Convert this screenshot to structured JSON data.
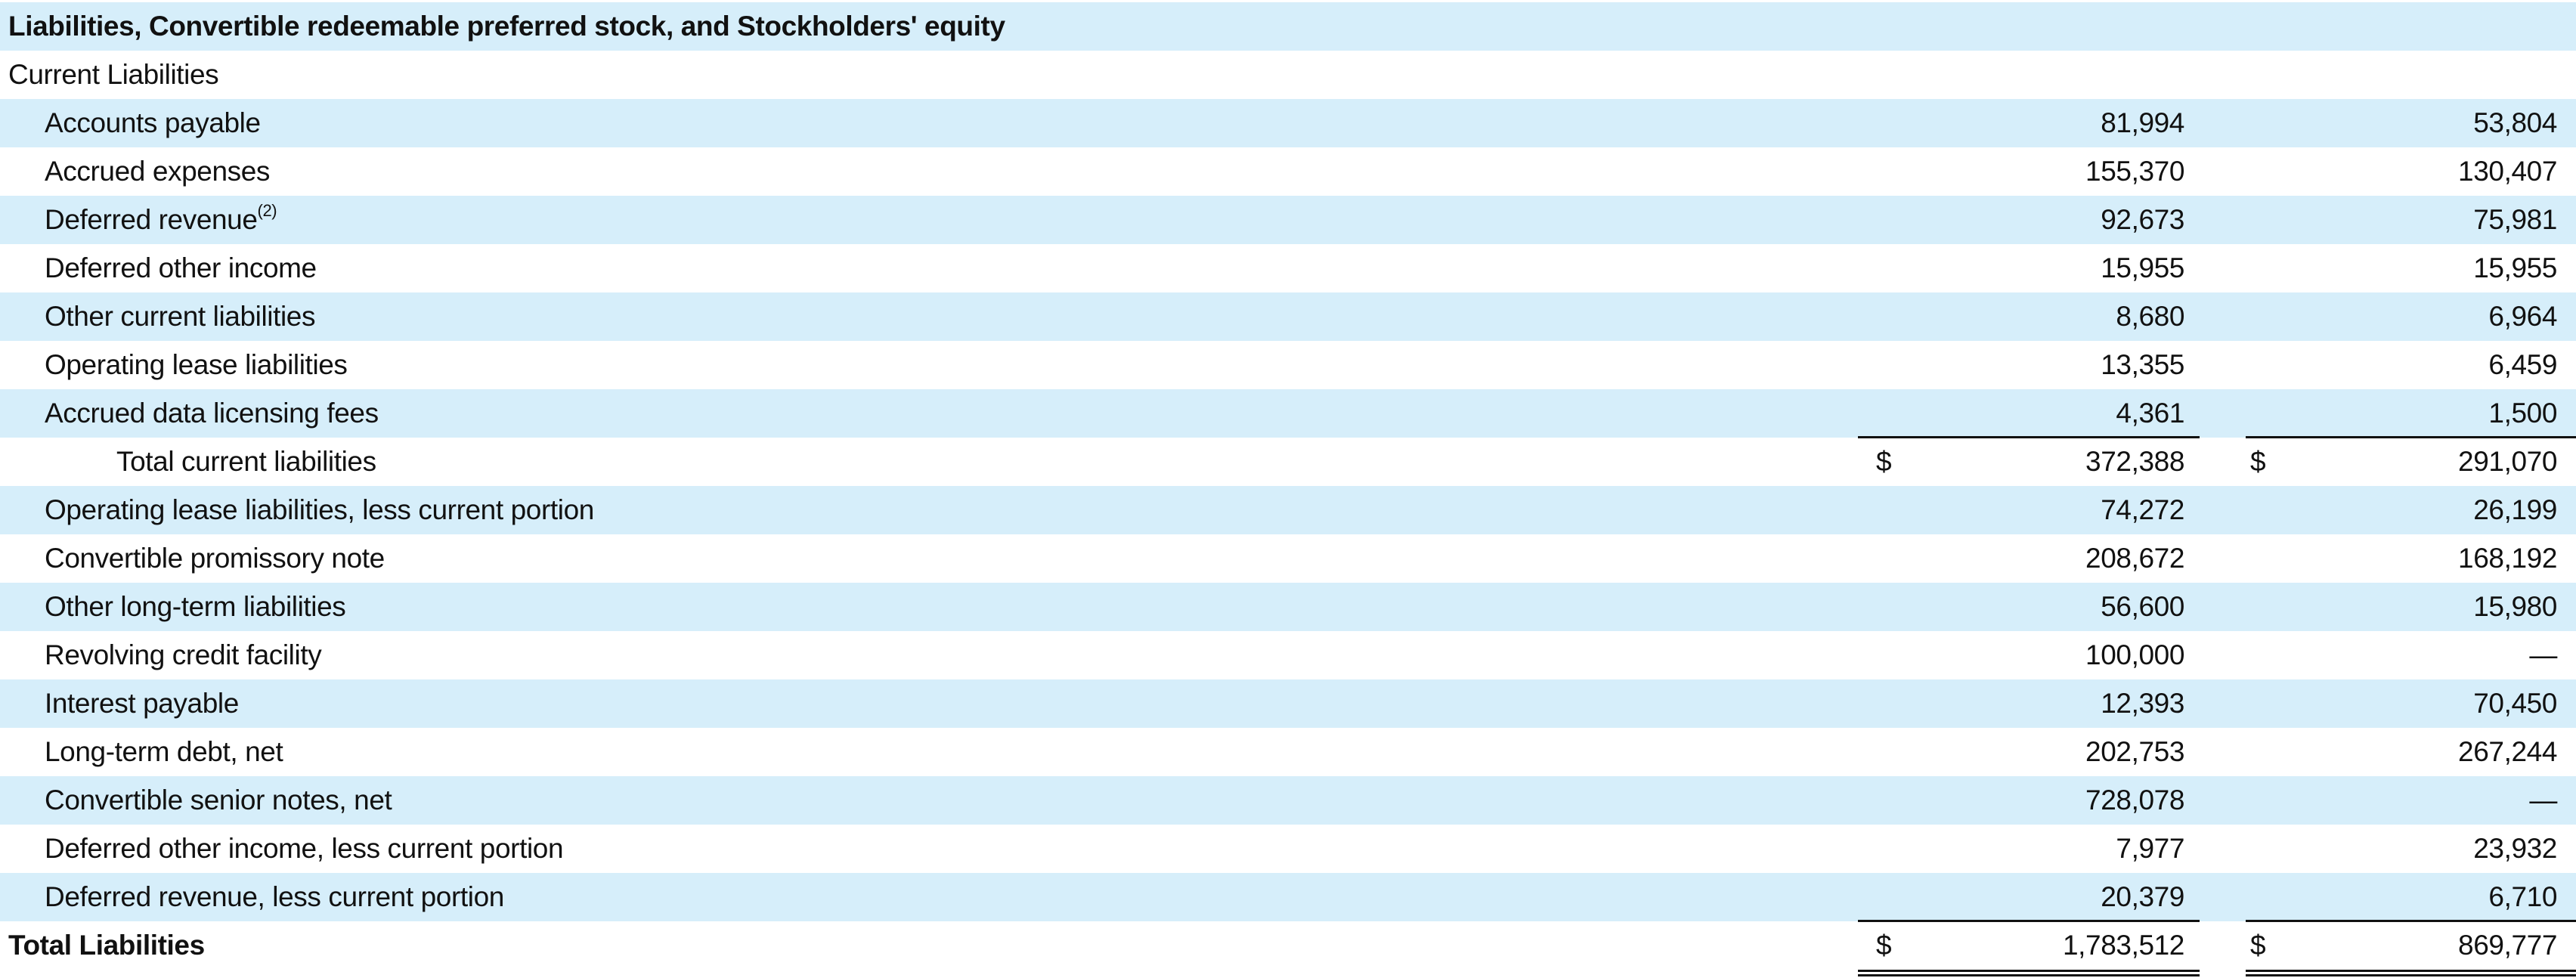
{
  "header": "Liabilities, Convertible redeemable preferred stock, and Stockholders' equity",
  "section": "Current Liabilities",
  "currency_symbol": "$",
  "rows": [
    {
      "label": "Accounts payable",
      "v1": "81,994",
      "v2": "53,804"
    },
    {
      "label": "Accrued expenses",
      "v1": "155,370",
      "v2": "130,407"
    },
    {
      "label": "Deferred revenue",
      "note": "(2)",
      "v1": "92,673",
      "v2": "75,981"
    },
    {
      "label": "Deferred other income",
      "v1": "15,955",
      "v2": "15,955"
    },
    {
      "label": "Other current liabilities",
      "v1": "8,680",
      "v2": "6,964"
    },
    {
      "label": "Operating lease liabilities",
      "v1": "13,355",
      "v2": "6,459"
    },
    {
      "label": "Accrued data licensing fees",
      "v1": "4,361",
      "v2": "1,500"
    },
    {
      "label": "Total current liabilities",
      "v1": "372,388",
      "v2": "291,070",
      "subtotal": true
    },
    {
      "label": "Operating lease liabilities, less current portion",
      "v1": "74,272",
      "v2": "26,199"
    },
    {
      "label": "Convertible promissory note",
      "v1": "208,672",
      "v2": "168,192"
    },
    {
      "label": "Other long-term liabilities",
      "v1": "56,600",
      "v2": "15,980"
    },
    {
      "label": "Revolving credit facility",
      "v1": "100,000",
      "v2": "—"
    },
    {
      "label": "Interest payable",
      "v1": "12,393",
      "v2": "70,450"
    },
    {
      "label": "Long-term debt, net",
      "v1": "202,753",
      "v2": "267,244"
    },
    {
      "label": "Convertible senior notes, net",
      "v1": "728,078",
      "v2": "—"
    },
    {
      "label": "Deferred other income, less current portion",
      "v1": "7,977",
      "v2": "23,932"
    },
    {
      "label": "Deferred revenue, less current portion",
      "v1": "20,379",
      "v2": "6,710"
    }
  ],
  "total": {
    "label": "Total Liabilities",
    "v1": "1,783,512",
    "v2": "869,777"
  },
  "colors": {
    "row_shade": "#d6eefa",
    "text": "#111111"
  }
}
